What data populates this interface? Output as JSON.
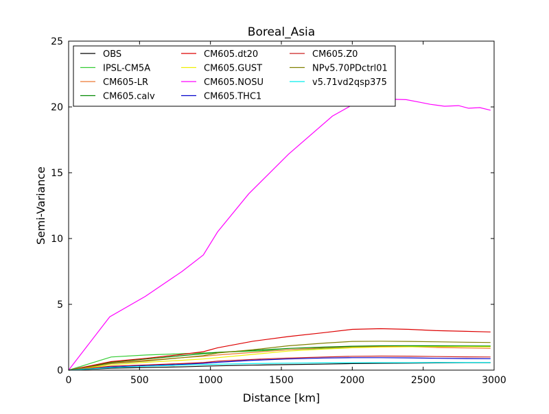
{
  "chart_data": {
    "type": "line",
    "title": "Boreal_Asia",
    "xlabel": "Distance [km]",
    "ylabel": "Semi-Variance",
    "xlim": [
      0,
      3000
    ],
    "ylim": [
      0,
      25
    ],
    "xticks": [
      0,
      500,
      1000,
      1500,
      2000,
      2500,
      3000
    ],
    "yticks": [
      0,
      5,
      10,
      15,
      20,
      25
    ],
    "grid": false,
    "legend_position": "upper-left",
    "legend_columns": 3,
    "series": [
      {
        "name": "OBS",
        "color": "#000000",
        "x": [
          0,
          300,
          550,
          800,
          950,
          1050,
          1300,
          1550,
          1800,
          2000,
          2200,
          2400,
          2600,
          2800,
          2975
        ],
        "y": [
          0,
          0.15,
          0.2,
          0.25,
          0.3,
          0.33,
          0.38,
          0.42,
          0.46,
          0.5,
          0.52,
          0.53,
          0.55,
          0.56,
          0.57
        ]
      },
      {
        "name": "IPSL-CM5A",
        "color": "#33cc33",
        "x": [
          0,
          300,
          550,
          800,
          950,
          1050,
          1300,
          1550,
          1800,
          2000,
          2200,
          2400,
          2600,
          2800,
          2975
        ],
        "y": [
          0,
          1.0,
          1.15,
          1.25,
          1.3,
          1.35,
          1.45,
          1.55,
          1.65,
          1.72,
          1.78,
          1.8,
          1.82,
          1.83,
          1.84
        ]
      },
      {
        "name": "CM605-LR",
        "color": "#ee7733",
        "x": [
          0,
          300,
          550,
          800,
          950,
          1050,
          1300,
          1550,
          1800,
          2000,
          2200,
          2400,
          2600,
          2800,
          2975
        ],
        "y": [
          0,
          0.55,
          0.75,
          0.95,
          1.05,
          1.15,
          1.35,
          1.55,
          1.7,
          1.78,
          1.8,
          1.78,
          1.72,
          1.68,
          1.65
        ]
      },
      {
        "name": "CM605.calv",
        "color": "#008800",
        "x": [
          0,
          300,
          550,
          800,
          950,
          1050,
          1300,
          1550,
          1800,
          2000,
          2200,
          2400,
          2600,
          2800,
          2975
        ],
        "y": [
          0,
          0.6,
          0.85,
          1.1,
          1.25,
          1.35,
          1.5,
          1.65,
          1.75,
          1.82,
          1.85,
          1.86,
          1.85,
          1.84,
          1.82
        ]
      },
      {
        "name": "CM605.dt20",
        "color": "#dd0000",
        "x": [
          0,
          300,
          550,
          800,
          950,
          1050,
          1300,
          1550,
          1800,
          2000,
          2200,
          2400,
          2600,
          2800,
          2975
        ],
        "y": [
          0,
          0.65,
          0.9,
          1.2,
          1.4,
          1.7,
          2.2,
          2.55,
          2.85,
          3.1,
          3.15,
          3.1,
          3.0,
          2.95,
          2.9
        ]
      },
      {
        "name": "CM605.GUST",
        "color": "#eeee00",
        "x": [
          0,
          300,
          550,
          800,
          950,
          1050,
          1300,
          1550,
          1800,
          2000,
          2200,
          2400,
          2600,
          2800,
          2975
        ],
        "y": [
          0,
          0.4,
          0.6,
          0.75,
          0.85,
          0.95,
          1.2,
          1.45,
          1.6,
          1.7,
          1.75,
          1.77,
          1.78,
          1.78,
          1.77
        ]
      },
      {
        "name": "CM605.NOSU",
        "color": "#ff00ff",
        "x": [
          0,
          290,
          540,
          800,
          950,
          1050,
          1270,
          1550,
          1860,
          2000,
          2130,
          2230,
          2380,
          2480,
          2550,
          2650,
          2750,
          2820,
          2900,
          2975
        ],
        "y": [
          0,
          4.05,
          5.6,
          7.5,
          8.75,
          10.5,
          13.4,
          16.4,
          19.3,
          20.15,
          20.5,
          20.6,
          20.55,
          20.35,
          20.2,
          20.05,
          20.1,
          19.9,
          19.95,
          19.75
        ]
      },
      {
        "name": "CM605.THC1",
        "color": "#0000cc",
        "x": [
          0,
          300,
          550,
          800,
          950,
          1050,
          1300,
          1550,
          1800,
          2000,
          2200,
          2400,
          2600,
          2800,
          2975
        ],
        "y": [
          0,
          0.25,
          0.35,
          0.45,
          0.52,
          0.6,
          0.75,
          0.85,
          0.92,
          0.95,
          0.95,
          0.93,
          0.9,
          0.88,
          0.87
        ]
      },
      {
        "name": "CM605.Z0",
        "color": "#cc2222",
        "x": [
          0,
          300,
          550,
          800,
          950,
          1050,
          1300,
          1550,
          1800,
          2000,
          2200,
          2400,
          2600,
          2800,
          2975
        ],
        "y": [
          0,
          0.3,
          0.4,
          0.5,
          0.58,
          0.68,
          0.82,
          0.92,
          1.0,
          1.05,
          1.07,
          1.06,
          1.03,
          1.01,
          1.0
        ]
      },
      {
        "name": "NPv5.70PDctrl01",
        "color": "#808000",
        "x": [
          0,
          300,
          550,
          800,
          950,
          1050,
          1300,
          1550,
          1800,
          2000,
          2200,
          2400,
          2600,
          2800,
          2975
        ],
        "y": [
          0,
          0.5,
          0.7,
          0.95,
          1.1,
          1.3,
          1.55,
          1.85,
          2.05,
          2.18,
          2.2,
          2.18,
          2.15,
          2.12,
          2.1
        ]
      },
      {
        "name": "v5.71vd2qsp375",
        "color": "#00eeee",
        "x": [
          0,
          300,
          550,
          800,
          950,
          1050,
          1300,
          1550,
          1800,
          2000,
          2200,
          2400,
          2600,
          2800,
          2975
        ],
        "y": [
          0,
          0.2,
          0.3,
          0.38,
          0.42,
          0.45,
          0.5,
          0.53,
          0.55,
          0.56,
          0.57,
          0.57,
          0.58,
          0.58,
          0.58
        ]
      }
    ]
  }
}
